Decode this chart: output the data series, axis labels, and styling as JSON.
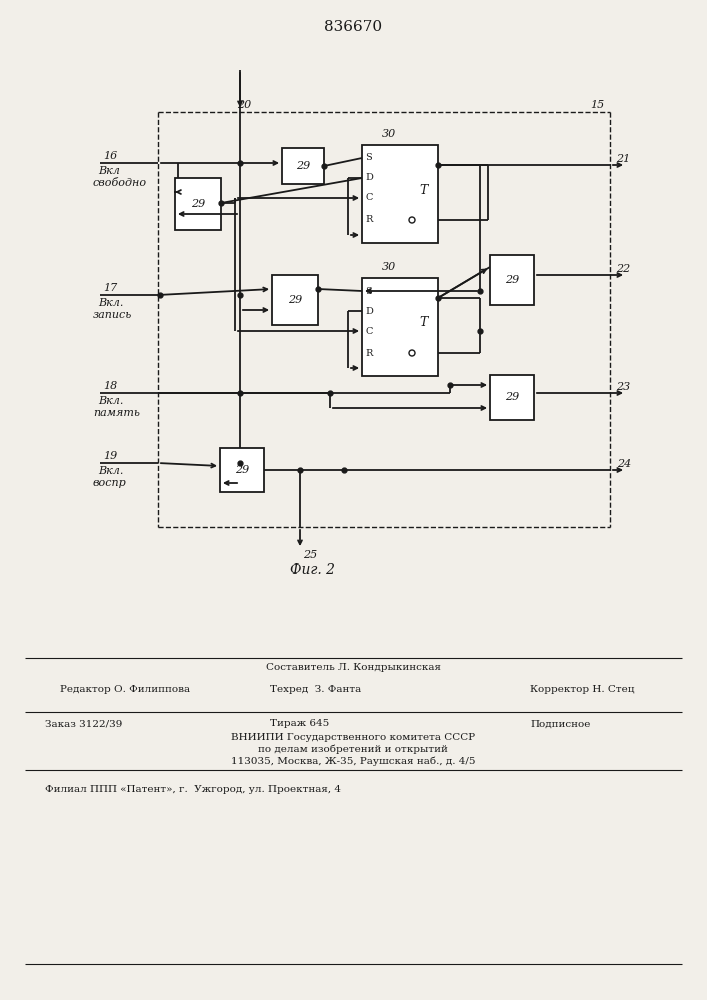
{
  "bg_color": "#f2efe9",
  "line_color": "#1a1a1a",
  "title": "836670",
  "fig_caption": "Фиг. 2",
  "label_16": "16",
  "label_17": "17",
  "label_18": "18",
  "label_19": "19",
  "label_20": "20",
  "label_15": "15",
  "label_21": "21",
  "label_22": "22",
  "label_23": "23",
  "label_24": "24",
  "label_25": "25",
  "label_30a": "30",
  "label_30b": "30",
  "text_vkl_svobodno_1": "Вкл",
  "text_vkl_svobodno_2": "свободно",
  "text_vkl_zapis_1": "Вкл.",
  "text_vkl_zapis_2": "запись",
  "text_vkl_pamyat_1": "Вкл.",
  "text_vkl_pamyat_2": "память",
  "text_vkl_vospr_1": "Вкл.",
  "text_vkl_vospr_2": "воспр",
  "footer_line1": "Составитель Л. Кондрыкинская",
  "footer_editor": "Редактор О. Филиппова",
  "footer_tekhred": "Техред  З. Фанта",
  "footer_korrektor": "Корректор Н. Стец",
  "footer_zakaz": "Заказ 3122/39",
  "footer_tirazh": "Тираж 645",
  "footer_podpisnoe": "Подписное",
  "footer_vniipи": "ВНИИПИ Государственного комитета СССР",
  "footer_podel": "по делам изобретений и открытий",
  "footer_addr": "113035, Москва, Ж-35, Раушская наб., д. 4/5",
  "footer_filial": "Филиал ППП «Патент», г.  Ужгород, ул. Проектная, 4"
}
